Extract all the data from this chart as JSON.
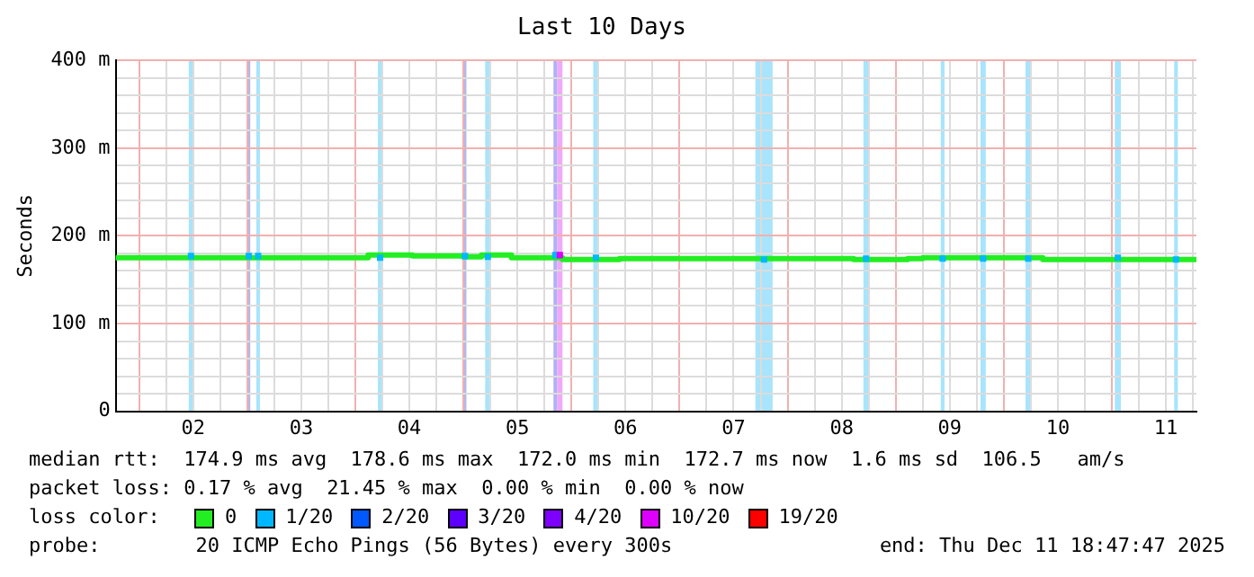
{
  "chart_data": {
    "type": "step",
    "title": "Last 10 Days",
    "ylabel": "Seconds",
    "legend": "bottom",
    "legend_title": "loss color:",
    "grid": true,
    "xlim": [
      "2025-12-01T18:47",
      "2025-12-11T18:47"
    ],
    "xticks": [
      {
        "value": "2025-12-02T00:00",
        "label": null
      },
      {
        "value": "2025-12-02T06:00",
        "label": null
      },
      {
        "value": "2025-12-02T12:00",
        "label": "02"
      },
      {
        "value": "2025-12-02T18:00",
        "label": null
      },
      {
        "value": "2025-12-03T00:00",
        "label": null
      },
      {
        "value": "2025-12-03T06:00",
        "label": null
      },
      {
        "value": "2025-12-03T12:00",
        "label": "03"
      },
      {
        "value": "2025-12-03T18:00",
        "label": null
      },
      {
        "value": "2025-12-04T00:00",
        "label": null
      },
      {
        "value": "2025-12-04T06:00",
        "label": null
      },
      {
        "value": "2025-12-04T12:00",
        "label": "04"
      },
      {
        "value": "2025-12-04T18:00",
        "label": null
      },
      {
        "value": "2025-12-05T00:00",
        "label": null
      },
      {
        "value": "2025-12-05T06:00",
        "label": null
      },
      {
        "value": "2025-12-05T12:00",
        "label": "05"
      },
      {
        "value": "2025-12-05T18:00",
        "label": null
      },
      {
        "value": "2025-12-06T00:00",
        "label": null
      },
      {
        "value": "2025-12-06T06:00",
        "label": null
      },
      {
        "value": "2025-12-06T12:00",
        "label": "06"
      },
      {
        "value": "2025-12-06T18:00",
        "label": null
      },
      {
        "value": "2025-12-07T00:00",
        "label": null
      },
      {
        "value": "2025-12-07T06:00",
        "label": null
      },
      {
        "value": "2025-12-07T12:00",
        "label": "07"
      },
      {
        "value": "2025-12-07T18:00",
        "label": null
      },
      {
        "value": "2025-12-08T00:00",
        "label": null
      },
      {
        "value": "2025-12-08T06:00",
        "label": null
      },
      {
        "value": "2025-12-08T12:00",
        "label": "08"
      },
      {
        "value": "2025-12-08T18:00",
        "label": null
      },
      {
        "value": "2025-12-09T00:00",
        "label": null
      },
      {
        "value": "2025-12-09T06:00",
        "label": null
      },
      {
        "value": "2025-12-09T12:00",
        "label": "09"
      },
      {
        "value": "2025-12-09T18:00",
        "label": null
      },
      {
        "value": "2025-12-10T00:00",
        "label": null
      },
      {
        "value": "2025-12-10T06:00",
        "label": null
      },
      {
        "value": "2025-12-10T12:00",
        "label": "10"
      },
      {
        "value": "2025-12-10T18:00",
        "label": null
      },
      {
        "value": "2025-12-11T00:00",
        "label": null
      },
      {
        "value": "2025-12-11T06:00",
        "label": null
      },
      {
        "value": "2025-12-11T12:00",
        "label": "11"
      },
      {
        "value": "2025-12-11T18:00",
        "label": null
      }
    ],
    "ylim": [
      0,
      400
    ],
    "yticks": [
      {
        "value": 0,
        "label": "0"
      },
      {
        "value": 20,
        "label": null
      },
      {
        "value": 40,
        "label": null
      },
      {
        "value": 60,
        "label": null
      },
      {
        "value": 80,
        "label": null
      },
      {
        "value": 100,
        "label": "100 m"
      },
      {
        "value": 120,
        "label": null
      },
      {
        "value": 140,
        "label": null
      },
      {
        "value": 160,
        "label": null
      },
      {
        "value": 180,
        "label": null
      },
      {
        "value": 200,
        "label": "200 m"
      },
      {
        "value": 220,
        "label": null
      },
      {
        "value": 240,
        "label": null
      },
      {
        "value": 260,
        "label": null
      },
      {
        "value": 280,
        "label": null
      },
      {
        "value": 300,
        "label": "300 m"
      },
      {
        "value": 320,
        "label": null
      },
      {
        "value": 340,
        "label": null
      },
      {
        "value": 360,
        "label": null
      },
      {
        "value": 380,
        "label": null
      },
      {
        "value": 400,
        "label": "400 m"
      }
    ],
    "bands": [
      {
        "axis": "x",
        "from": "2025-12-02T11:00",
        "to": "2025-12-02T12:00",
        "color": "#a8e4fc"
      },
      {
        "axis": "x",
        "from": "2025-12-03T00:05",
        "to": "2025-12-03T00:40",
        "color": "#b4b8e8"
      },
      {
        "axis": "x",
        "from": "2025-12-03T02:00",
        "to": "2025-12-03T02:50",
        "color": "#a8e4fc"
      },
      {
        "axis": "x",
        "from": "2025-12-04T05:00",
        "to": "2025-12-04T06:00",
        "color": "#a8e4fc"
      },
      {
        "axis": "x",
        "from": "2025-12-05T00:00",
        "to": "2025-12-05T00:40",
        "color": "#b4b8e8"
      },
      {
        "axis": "x",
        "from": "2025-12-05T04:50",
        "to": "2025-12-05T06:00",
        "color": "#a8e4fc"
      },
      {
        "axis": "x",
        "from": "2025-12-05T20:00",
        "to": "2025-12-05T20:50",
        "color": "#b0b0f8"
      },
      {
        "axis": "x",
        "from": "2025-12-05T20:50",
        "to": "2025-12-05T22:00",
        "color": "#f0a8f8"
      },
      {
        "axis": "x",
        "from": "2025-12-06T04:50",
        "to": "2025-12-06T06:00",
        "color": "#a8e4fc"
      },
      {
        "axis": "x",
        "from": "2025-12-07T16:50",
        "to": "2025-12-07T20:40",
        "color": "#a8e4fc"
      },
      {
        "axis": "x",
        "from": "2025-12-08T16:50",
        "to": "2025-12-08T18:00",
        "color": "#a8e4fc"
      },
      {
        "axis": "x",
        "from": "2025-12-09T10:00",
        "to": "2025-12-09T10:50",
        "color": "#a8e4fc"
      },
      {
        "axis": "x",
        "from": "2025-12-09T18:50",
        "to": "2025-12-09T20:00",
        "color": "#a8e4fc"
      },
      {
        "axis": "x",
        "from": "2025-12-10T04:50",
        "to": "2025-12-10T06:00",
        "color": "#a8e4fc"
      },
      {
        "axis": "x",
        "from": "2025-12-11T00:40",
        "to": "2025-12-11T02:00",
        "color": "#a8e4fc"
      },
      {
        "axis": "x",
        "from": "2025-12-11T13:50",
        "to": "2025-12-11T14:40",
        "color": "#a8e4fc"
      }
    ],
    "series": [
      {
        "name": "0",
        "color": "#22ee22",
        "x": [
          "2025-12-01T18:47",
          "2025-12-04T02:50",
          "2025-12-04T12:40",
          "2025-12-05T00:00",
          "2025-12-05T04:00",
          "2025-12-05T10:40",
          "2025-12-05T22:00",
          "2025-12-06T10:40",
          "2025-12-08T14:40",
          "2025-12-09T02:40",
          "2025-12-09T06:00",
          "2025-12-10T08:40",
          "2025-12-11T12:40",
          "2025-12-11T18:47"
        ],
        "values": [
          177,
          175,
          178,
          177,
          176,
          178,
          175,
          173,
          174,
          173,
          174,
          175,
          173,
          173
        ]
      },
      {
        "name": "1/20",
        "color": "#00b8ff",
        "type": "scatter",
        "marker": "square",
        "x": [
          "2025-12-02T11:30",
          "2025-12-03T00:20",
          "2025-12-03T02:25",
          "2025-12-04T05:30",
          "2025-12-05T00:20",
          "2025-12-05T05:25",
          "2025-12-05T20:25",
          "2025-12-06T05:25",
          "2025-12-07T18:45",
          "2025-12-08T17:25",
          "2025-12-09T10:25",
          "2025-12-09T19:25",
          "2025-12-10T05:25",
          "2025-12-11T01:20",
          "2025-12-11T14:15"
        ],
        "values": [
          177,
          177,
          177,
          175,
          177,
          176,
          178,
          175,
          173,
          174,
          174,
          174,
          174,
          175,
          173
        ]
      },
      {
        "name": "2/20",
        "color": "#0059ff"
      },
      {
        "name": "3/20",
        "color": "#5e00ff"
      },
      {
        "name": "4/20",
        "color": "#7e00ff"
      },
      {
        "name": "10/20",
        "color": "#dd00ff",
        "type": "scatter",
        "marker": "square",
        "x": [
          "2025-12-05T21:25"
        ],
        "values": [
          178
        ]
      },
      {
        "name": "19/20",
        "color": "#ff0000"
      }
    ],
    "annotations": [
      "median rtt:  174.9 ms avg  178.6 ms max  172.0 ms min  172.7 ms now  1.6 ms sd  106.5   am/s",
      "packet loss: 0.17 % avg  21.45 % max  0.00 % min  0.00 % now",
      "probe:        20 ICMP Echo Pings (56 Bytes) every 300s",
      "end: Thu Dec 11 18:47:47 2025"
    ]
  }
}
